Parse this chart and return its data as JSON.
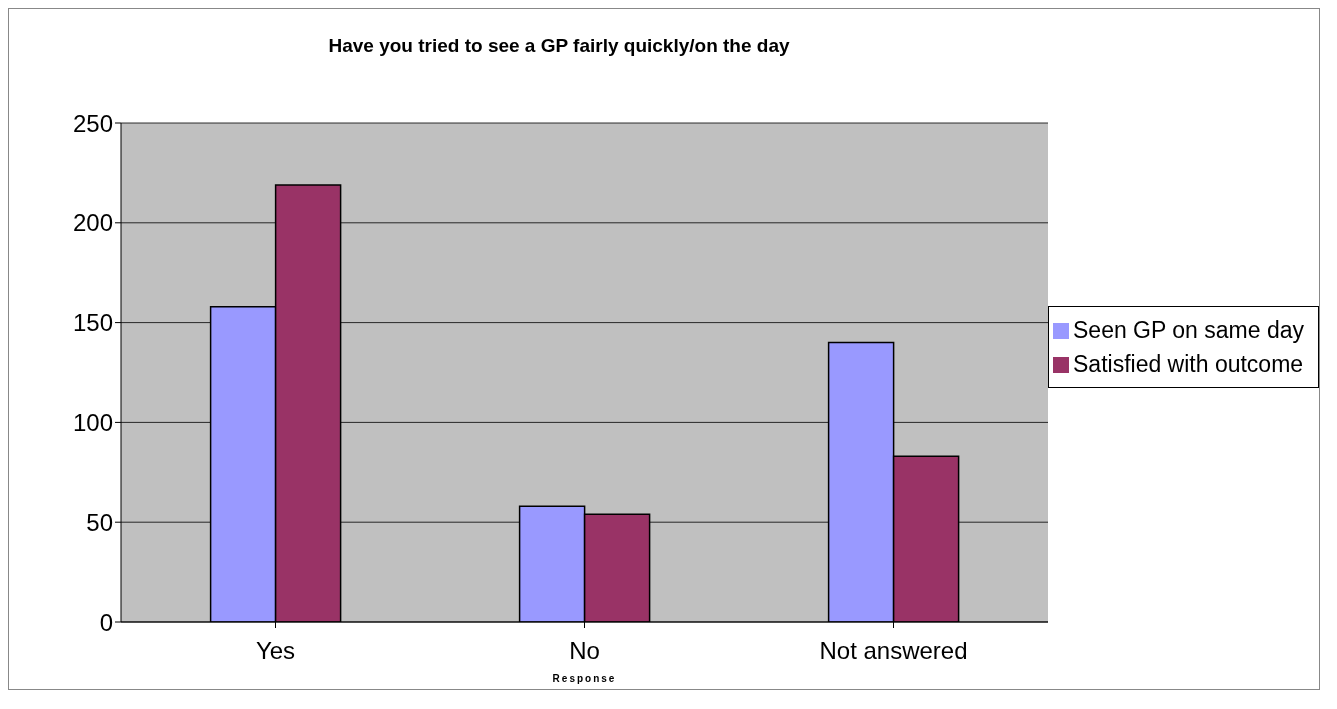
{
  "chart_data": {
    "type": "bar",
    "title": "Have you tried to see a GP fairly quickly/on the day",
    "xlabel": "Response",
    "categories": [
      "Yes",
      "No",
      "Not answered"
    ],
    "series": [
      {
        "name": "Seen GP on same day",
        "color": "#9999ff",
        "values": [
          158,
          58,
          140
        ]
      },
      {
        "name": "Satisfied with outcome",
        "color": "#993366",
        "values": [
          219,
          54,
          83
        ]
      }
    ],
    "ylim": [
      0,
      250
    ],
    "yticks": [
      0,
      50,
      100,
      150,
      200,
      250
    ],
    "grid": "y",
    "legend": "right"
  }
}
